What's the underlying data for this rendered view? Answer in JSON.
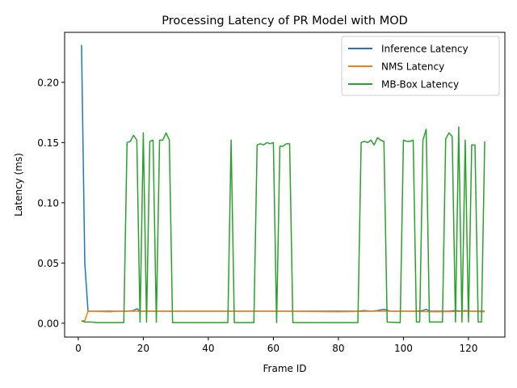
{
  "chart_data": {
    "type": "line",
    "title": "Processing Latency of PR Model with MOD",
    "xlabel": "Frame ID",
    "ylabel": "Latency (ms)",
    "xlim": [
      -4.2,
      131.2
    ],
    "ylim": [
      -0.0115,
      0.2415
    ],
    "xticks": [
      0,
      20,
      40,
      60,
      80,
      100,
      120
    ],
    "xtick_labels": [
      "0",
      "20",
      "40",
      "60",
      "80",
      "100",
      "120"
    ],
    "yticks": [
      0.0,
      0.05,
      0.1,
      0.15,
      0.2
    ],
    "ytick_labels": [
      "0.00",
      "0.05",
      "0.10",
      "0.15",
      "0.20"
    ],
    "grid": false,
    "legend_position": "upper right",
    "series": [
      {
        "name": "Inference Latency",
        "color": "#1f77b4",
        "points": [
          [
            1,
            0.231
          ],
          [
            2,
            0.05
          ],
          [
            3,
            0.01
          ],
          [
            5,
            0.01
          ],
          [
            10,
            0.01
          ],
          [
            15,
            0.01
          ],
          [
            17,
            0.0105
          ],
          [
            18,
            0.012
          ],
          [
            19,
            0.01
          ],
          [
            25,
            0.01
          ],
          [
            40,
            0.01
          ],
          [
            60,
            0.01
          ],
          [
            80,
            0.01
          ],
          [
            86,
            0.01
          ],
          [
            88,
            0.0105
          ],
          [
            90,
            0.01
          ],
          [
            92,
            0.0105
          ],
          [
            94,
            0.0115
          ],
          [
            96,
            0.01
          ],
          [
            104,
            0.01
          ],
          [
            106,
            0.0105
          ],
          [
            107,
            0.0115
          ],
          [
            108,
            0.01
          ],
          [
            114,
            0.01
          ],
          [
            116,
            0.0105
          ],
          [
            118,
            0.01
          ],
          [
            119,
            0.0105
          ],
          [
            120,
            0.01
          ],
          [
            125,
            0.01
          ]
        ]
      },
      {
        "name": "NMS Latency",
        "color": "#ff7f0e",
        "points": [
          [
            1,
            0.002
          ],
          [
            2,
            0.002
          ],
          [
            3,
            0.01
          ],
          [
            10,
            0.0095
          ],
          [
            11,
            0.01
          ],
          [
            20,
            0.01
          ],
          [
            40,
            0.01
          ],
          [
            60,
            0.01
          ],
          [
            80,
            0.0095
          ],
          [
            90,
            0.01
          ],
          [
            100,
            0.01
          ],
          [
            110,
            0.0095
          ],
          [
            120,
            0.01
          ],
          [
            125,
            0.0095
          ]
        ]
      },
      {
        "name": "MB-Box Latency",
        "color": "#2ca02c",
        "points": [
          [
            1,
            0.002
          ],
          [
            2,
            0.001
          ],
          [
            3,
            0.001
          ],
          [
            4,
            0.001
          ],
          [
            6,
            0.0005
          ],
          [
            8,
            0.0005
          ],
          [
            10,
            0.0005
          ],
          [
            12,
            0.0005
          ],
          [
            13,
            0.0005
          ],
          [
            14,
            0.0005
          ],
          [
            15,
            0.15
          ],
          [
            16,
            0.151
          ],
          [
            17,
            0.156
          ],
          [
            18,
            0.152
          ],
          [
            19,
            0.001
          ],
          [
            20,
            0.158
          ],
          [
            21,
            0.001
          ],
          [
            22,
            0.151
          ],
          [
            23,
            0.152
          ],
          [
            24,
            0.001
          ],
          [
            25,
            0.152
          ],
          [
            26,
            0.152
          ],
          [
            27,
            0.158
          ],
          [
            28,
            0.152
          ],
          [
            29,
            0.0005
          ],
          [
            35,
            0.0005
          ],
          [
            40,
            0.0005
          ],
          [
            46,
            0.0005
          ],
          [
            47,
            0.152
          ],
          [
            48,
            0.0005
          ],
          [
            54,
            0.0005
          ],
          [
            55,
            0.148
          ],
          [
            56,
            0.149
          ],
          [
            57,
            0.148
          ],
          [
            58,
            0.15
          ],
          [
            59,
            0.149
          ],
          [
            60,
            0.15
          ],
          [
            61,
            0.0005
          ],
          [
            62,
            0.147
          ],
          [
            63,
            0.147
          ],
          [
            64,
            0.149
          ],
          [
            65,
            0.149
          ],
          [
            66,
            0.0005
          ],
          [
            70,
            0.0005
          ],
          [
            80,
            0.0005
          ],
          [
            86,
            0.0005
          ],
          [
            87,
            0.15
          ],
          [
            88,
            0.151
          ],
          [
            89,
            0.15
          ],
          [
            90,
            0.152
          ],
          [
            91,
            0.148
          ],
          [
            92,
            0.154
          ],
          [
            93,
            0.152
          ],
          [
            94,
            0.151
          ],
          [
            95,
            0.001
          ],
          [
            99,
            0.0005
          ],
          [
            100,
            0.152
          ],
          [
            101,
            0.151
          ],
          [
            102,
            0.151
          ],
          [
            103,
            0.152
          ],
          [
            104,
            0.001
          ],
          [
            105,
            0.001
          ],
          [
            106,
            0.152
          ],
          [
            107,
            0.161
          ],
          [
            108,
            0.001
          ],
          [
            112,
            0.001
          ],
          [
            113,
            0.153
          ],
          [
            114,
            0.158
          ],
          [
            115,
            0.155
          ],
          [
            116,
            0.001
          ],
          [
            117,
            0.163
          ],
          [
            118,
            0.001
          ],
          [
            119,
            0.152
          ],
          [
            120,
            0.001
          ],
          [
            121,
            0.148
          ],
          [
            122,
            0.148
          ],
          [
            123,
            0.001
          ],
          [
            124,
            0.001
          ],
          [
            125,
            0.151
          ]
        ]
      }
    ]
  }
}
